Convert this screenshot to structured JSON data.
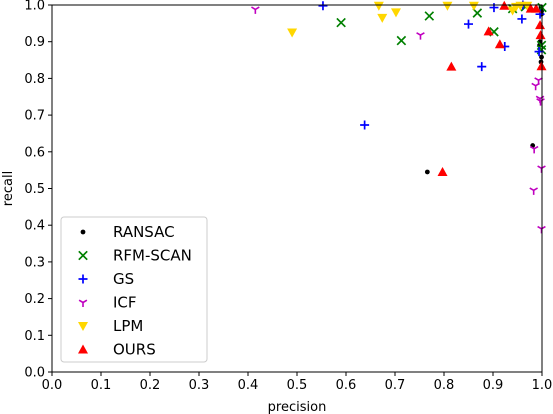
{
  "chart_data": {
    "type": "scatter",
    "title": "",
    "xlabel": "precision",
    "ylabel": "recall",
    "xlim": [
      0,
      1.0
    ],
    "ylim": [
      0,
      1.0
    ],
    "xticks": [
      "0.0",
      "0.1",
      "0.2",
      "0.3",
      "0.4",
      "0.5",
      "0.6",
      "0.7",
      "0.8",
      "0.9",
      "1.0"
    ],
    "yticks": [
      "0.0",
      "0.1",
      "0.2",
      "0.3",
      "0.4",
      "0.5",
      "0.6",
      "0.7",
      "0.8",
      "0.9",
      "1.0"
    ],
    "grid": false,
    "legend_position": "bottom-left",
    "series": [
      {
        "name": "RANSAC",
        "marker": "dot",
        "color": "#000000",
        "points": [
          [
            0.766,
            0.545
          ],
          [
            0.981,
            0.617
          ],
          [
            0.998,
            0.995
          ],
          [
            0.999,
            0.983
          ],
          [
            0.996,
            0.9
          ],
          [
            0.999,
            0.858
          ],
          [
            0.998,
            0.845
          ],
          [
            0.995,
            0.89
          ],
          [
            0.999,
            0.99
          ],
          [
            0.999,
            0.975
          ]
        ]
      },
      {
        "name": "RFM-SCAN",
        "marker": "x",
        "color": "#008000",
        "points": [
          [
            0.59,
            0.952
          ],
          [
            0.713,
            0.903
          ],
          [
            0.77,
            0.97
          ],
          [
            0.868,
            0.978
          ],
          [
            0.902,
            0.927
          ],
          [
            0.94,
            0.99
          ],
          [
            0.966,
            0.995
          ],
          [
            0.999,
            0.878
          ],
          [
            0.999,
            0.89
          ],
          [
            1.0,
            0.993
          ]
        ]
      },
      {
        "name": "GS",
        "marker": "plus",
        "color": "#0000ff",
        "points": [
          [
            0.553,
            0.998
          ],
          [
            0.638,
            0.673
          ],
          [
            0.85,
            0.948
          ],
          [
            0.877,
            0.832
          ],
          [
            0.902,
            0.993
          ],
          [
            0.924,
            0.887
          ],
          [
            0.959,
            0.962
          ],
          [
            0.961,
            1.0
          ],
          [
            0.994,
            0.873
          ],
          [
            0.996,
            0.975
          ]
        ]
      },
      {
        "name": "ICF",
        "marker": "tri",
        "color": "#c000c0",
        "points": [
          [
            0.415,
            0.988
          ],
          [
            0.752,
            0.918
          ],
          [
            0.983,
            0.495
          ],
          [
            0.984,
            0.608
          ],
          [
            0.987,
            0.78
          ],
          [
            0.993,
            0.795
          ],
          [
            0.996,
            0.745
          ],
          [
            0.997,
            0.738
          ],
          [
            0.999,
            0.39
          ],
          [
            0.999,
            0.555
          ]
        ]
      },
      {
        "name": "LPM",
        "marker": "tri_down",
        "color": "#ffd700",
        "points": [
          [
            0.49,
            0.925
          ],
          [
            0.667,
            0.998
          ],
          [
            0.674,
            0.965
          ],
          [
            0.702,
            0.98
          ],
          [
            0.807,
            0.998
          ],
          [
            0.861,
            0.998
          ],
          [
            0.94,
            0.985
          ],
          [
            0.947,
            0.995
          ],
          [
            0.956,
            0.998
          ],
          [
            0.97,
            0.998
          ]
        ]
      },
      {
        "name": "OURS",
        "marker": "tri_up",
        "color": "#ff0000",
        "points": [
          [
            0.797,
            0.545
          ],
          [
            0.815,
            0.832
          ],
          [
            0.891,
            0.928
          ],
          [
            0.914,
            0.893
          ],
          [
            0.923,
            0.998
          ],
          [
            0.977,
            0.99
          ],
          [
            0.988,
            0.99
          ],
          [
            0.996,
            0.945
          ],
          [
            0.997,
            0.918
          ],
          [
            0.999,
            0.833
          ]
        ]
      }
    ]
  }
}
